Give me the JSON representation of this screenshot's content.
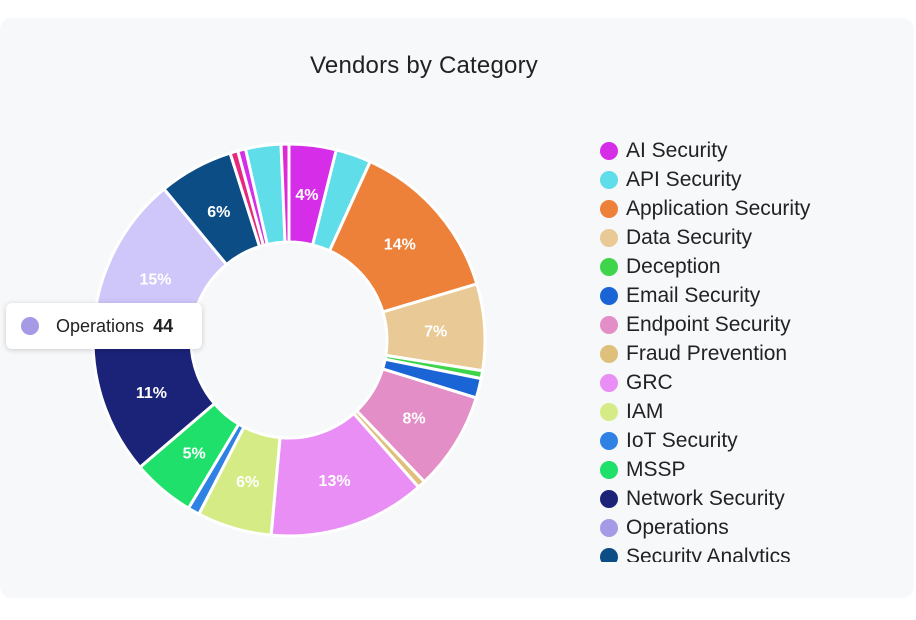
{
  "chart_data": {
    "type": "pie",
    "donut": true,
    "title": "Vendors by Category",
    "legend_position": "right",
    "slices": [
      {
        "label": "AI Security",
        "percent": 4,
        "value": 12,
        "color": "#d62ee8"
      },
      {
        "label": "API Security",
        "percent": 3,
        "value": 9,
        "color": "#5fdde8"
      },
      {
        "label": "Application Security",
        "percent": 14,
        "value": 42,
        "color": "#ee8139"
      },
      {
        "label": "Data Security",
        "percent": 7,
        "value": 22,
        "color": "#e9c996"
      },
      {
        "label": "Deception",
        "percent": 0.6,
        "value": 2,
        "color": "#3fd54a"
      },
      {
        "label": "Email Security",
        "percent": 1.6,
        "value": 5,
        "color": "#1a64d6"
      },
      {
        "label": "Endpoint Security",
        "percent": 8,
        "value": 25,
        "color": "#e38ec6"
      },
      {
        "label": "Fraud Prevention",
        "percent": 0.6,
        "value": 2,
        "color": "#dfc07a"
      },
      {
        "label": "GRC",
        "percent": 13,
        "value": 40,
        "color": "#e88ef5"
      },
      {
        "label": "IAM",
        "percent": 6,
        "value": 19,
        "color": "#d5ec86"
      },
      {
        "label": "IoT Security",
        "percent": 1,
        "value": 3,
        "color": "#2f82e3"
      },
      {
        "label": "MSSP",
        "percent": 5,
        "value": 16,
        "color": "#1fe06b"
      },
      {
        "label": "Network Security",
        "percent": 11,
        "value": 34,
        "color": "#1a2378"
      },
      {
        "label": "Operations",
        "percent": 15,
        "value": 44,
        "color": "#cfc7f9"
      },
      {
        "label": "Security Analytics",
        "percent": 6,
        "value": 19,
        "color": "#0c4d86"
      },
      {
        "label": "",
        "percent": 0.6,
        "value": 2,
        "color": "#e6297e"
      },
      {
        "label": "",
        "percent": 0.7,
        "value": 2,
        "color": "#d62ee8"
      },
      {
        "label": "",
        "percent": 3,
        "value": 9,
        "color": "#5fdde8"
      },
      {
        "label": "",
        "percent": 0.6,
        "value": 2,
        "color": "#e029d6"
      }
    ]
  },
  "tooltip": {
    "label": "Operations",
    "value": "44",
    "color": "#a59ae6"
  },
  "legend_colors_override": {
    "Operations": "#a59ae6"
  }
}
